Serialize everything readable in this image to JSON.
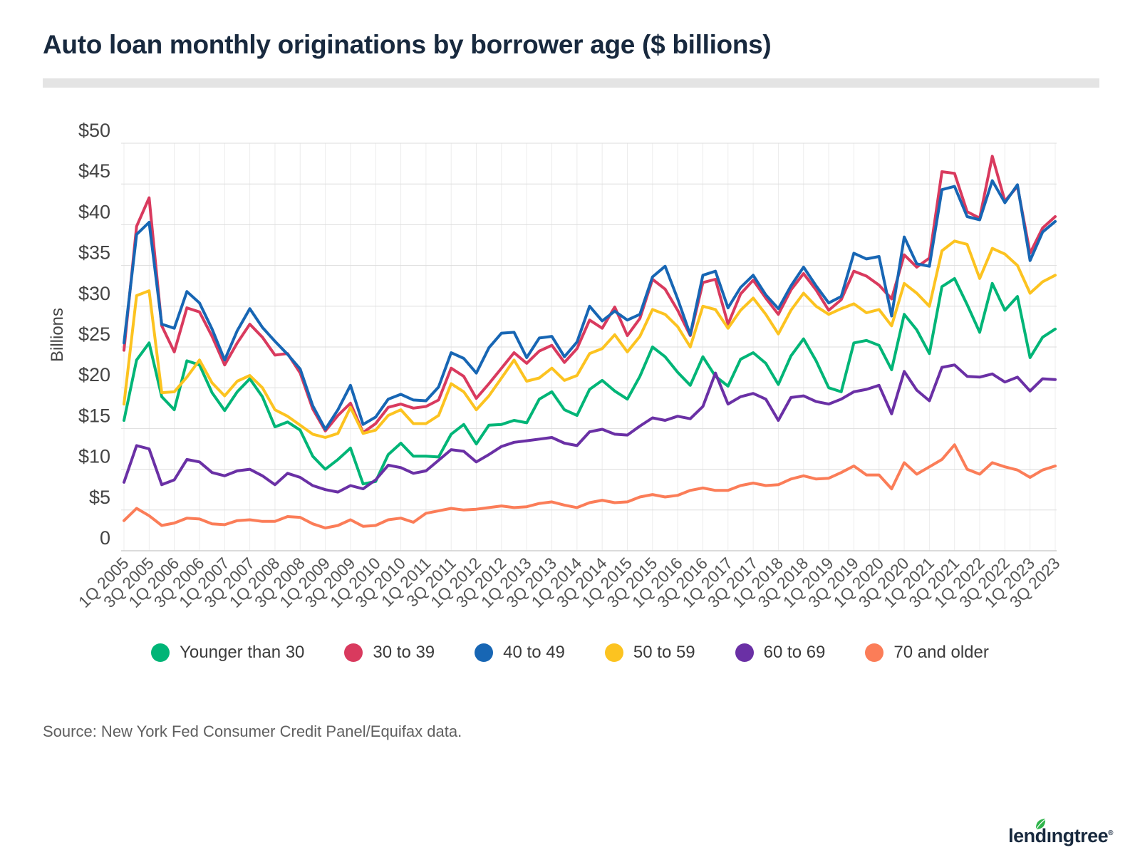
{
  "title": "Auto loan monthly originations by borrower age ($ billions)",
  "source_note": "Source: New York Fed Consumer Credit Panel/Equifax data.",
  "logo": {
    "text_left": "lend",
    "text_right": "ngtree",
    "dotless_i": "ı",
    "registered": "®"
  },
  "colors": {
    "title_navy": "#18293e",
    "grid_line": "#dddddd",
    "grid_line_vertical": "#ececec",
    "axis_text": "#444444",
    "tick_text": "#555555",
    "background": "#ffffff",
    "divider": "#e4e4e4",
    "logo_leaf": "#2fb44b"
  },
  "chart_data": {
    "type": "line",
    "title": "Auto loan monthly originations by borrower age ($ billions)",
    "xlabel": "",
    "ylabel": "Billions",
    "ylim": [
      0,
      50
    ],
    "ytick_step": 5,
    "ytick_labels": [
      "0",
      "$5",
      "$10",
      "$15",
      "$20",
      "$25",
      "$30",
      "$35",
      "$40",
      "$45",
      "$50"
    ],
    "grid": true,
    "legend_position": "bottom",
    "x_tick_labels": [
      "1Q 2005",
      "3Q 2005",
      "1Q 2006",
      "3Q 2006",
      "1Q 2007",
      "3Q 2007",
      "1Q 2008",
      "3Q 2008",
      "1Q 2009",
      "3Q 2009",
      "1Q 2010",
      "3Q 2010",
      "1Q 2011",
      "3Q 2011",
      "1Q 2012",
      "3Q 2012",
      "1Q 2013",
      "3Q 2013",
      "1Q 2014",
      "3Q 2014",
      "1Q 2015",
      "3Q 2015",
      "1Q 2016",
      "3Q 2016",
      "1Q 2017",
      "3Q 2017",
      "1Q 2018",
      "3Q 2018",
      "1Q 2019",
      "3Q 2019",
      "1Q 2020",
      "3Q 2020",
      "1Q 2021",
      "3Q 2021",
      "1Q 2022",
      "3Q 2022",
      "1Q 2023",
      "3Q 2023"
    ],
    "categories": [
      "1Q 2005",
      "2Q 2005",
      "3Q 2005",
      "4Q 2005",
      "1Q 2006",
      "2Q 2006",
      "3Q 2006",
      "4Q 2006",
      "1Q 2007",
      "2Q 2007",
      "3Q 2007",
      "4Q 2007",
      "1Q 2008",
      "2Q 2008",
      "3Q 2008",
      "4Q 2008",
      "1Q 2009",
      "2Q 2009",
      "3Q 2009",
      "4Q 2009",
      "1Q 2010",
      "2Q 2010",
      "3Q 2010",
      "4Q 2010",
      "1Q 2011",
      "2Q 2011",
      "3Q 2011",
      "4Q 2011",
      "1Q 2012",
      "2Q 2012",
      "3Q 2012",
      "4Q 2012",
      "1Q 2013",
      "2Q 2013",
      "3Q 2013",
      "4Q 2013",
      "1Q 2014",
      "2Q 2014",
      "3Q 2014",
      "4Q 2014",
      "1Q 2015",
      "2Q 2015",
      "3Q 2015",
      "4Q 2015",
      "1Q 2016",
      "2Q 2016",
      "3Q 2016",
      "4Q 2016",
      "1Q 2017",
      "2Q 2017",
      "3Q 2017",
      "4Q 2017",
      "1Q 2018",
      "2Q 2018",
      "3Q 2018",
      "4Q 2018",
      "1Q 2019",
      "2Q 2019",
      "3Q 2019",
      "4Q 2019",
      "1Q 2020",
      "2Q 2020",
      "3Q 2020",
      "4Q 2020",
      "1Q 2021",
      "2Q 2021",
      "3Q 2021",
      "4Q 2021",
      "1Q 2022",
      "2Q 2022",
      "3Q 2022",
      "4Q 2022",
      "1Q 2023",
      "2Q 2023",
      "3Q 2023"
    ],
    "series": [
      {
        "name": "Younger than 30",
        "color": "#00b577",
        "values": [
          16.0,
          23.4,
          25.5,
          18.9,
          17.3,
          23.3,
          22.8,
          19.4,
          17.2,
          19.5,
          21.1,
          18.9,
          15.2,
          15.8,
          14.8,
          11.6,
          10.0,
          11.2,
          12.6,
          8.2,
          8.5,
          11.8,
          13.2,
          11.6,
          11.6,
          11.5,
          14.3,
          15.5,
          13.1,
          15.4,
          15.5,
          16.0,
          15.7,
          18.6,
          19.5,
          17.3,
          16.6,
          19.8,
          20.9,
          19.6,
          18.6,
          21.4,
          25.0,
          23.8,
          21.9,
          20.3,
          23.8,
          21.4,
          20.2,
          23.5,
          24.3,
          23.0,
          20.4,
          23.9,
          26.0,
          23.3,
          20.0,
          19.5,
          25.5,
          25.8,
          25.2,
          22.2,
          29.0,
          27.1,
          24.2,
          32.4,
          33.4,
          30.2,
          26.8,
          32.8,
          29.5,
          31.2,
          23.7,
          26.2,
          27.2
        ]
      },
      {
        "name": "30 to 39",
        "color": "#d93a5e",
        "values": [
          24.6,
          39.8,
          43.3,
          27.6,
          24.4,
          29.8,
          29.3,
          26.3,
          22.8,
          25.5,
          27.8,
          26.2,
          24.0,
          24.2,
          21.8,
          17.4,
          14.7,
          16.6,
          18.1,
          14.5,
          15.6,
          17.6,
          18.0,
          17.5,
          17.7,
          18.5,
          22.4,
          21.4,
          18.7,
          20.5,
          22.4,
          24.3,
          23.0,
          24.5,
          25.2,
          23.1,
          24.8,
          28.3,
          27.3,
          29.9,
          26.4,
          28.5,
          33.3,
          32.1,
          29.5,
          26.4,
          32.9,
          33.3,
          27.8,
          31.5,
          33.2,
          31.0,
          29.0,
          32.0,
          34.0,
          32.0,
          29.5,
          30.8,
          34.3,
          33.7,
          32.6,
          30.9,
          36.3,
          34.8,
          35.9,
          46.5,
          46.3,
          41.6,
          40.8,
          48.4,
          42.9,
          44.7,
          36.5,
          39.6,
          41.0
        ]
      },
      {
        "name": "40 to 49",
        "color": "#1766b4",
        "values": [
          25.5,
          38.8,
          40.3,
          27.8,
          27.3,
          31.8,
          30.4,
          27.2,
          23.4,
          27.0,
          29.7,
          27.4,
          25.7,
          24.1,
          22.3,
          17.8,
          14.9,
          17.3,
          20.3,
          15.5,
          16.4,
          18.6,
          19.2,
          18.5,
          18.4,
          20.1,
          24.3,
          23.6,
          21.8,
          24.9,
          26.7,
          26.8,
          23.7,
          26.1,
          26.3,
          23.8,
          25.6,
          30.0,
          28.2,
          29.4,
          28.3,
          29.0,
          33.6,
          34.9,
          30.9,
          26.5,
          33.8,
          34.3,
          29.8,
          32.3,
          33.8,
          31.4,
          29.7,
          32.5,
          34.8,
          32.5,
          30.4,
          31.2,
          36.5,
          35.8,
          36.1,
          28.8,
          38.5,
          35.2,
          34.9,
          44.3,
          44.7,
          41.0,
          40.6,
          45.4,
          42.7,
          44.9,
          35.6,
          39.1,
          40.4
        ]
      },
      {
        "name": "50 to 59",
        "color": "#fcc320",
        "values": [
          18.0,
          31.3,
          31.9,
          19.4,
          19.5,
          21.3,
          23.4,
          20.6,
          19.0,
          20.8,
          21.5,
          20.0,
          17.3,
          16.5,
          15.4,
          14.3,
          13.9,
          14.4,
          17.6,
          14.4,
          14.8,
          16.6,
          17.3,
          15.6,
          15.6,
          16.6,
          20.5,
          19.5,
          17.3,
          19.0,
          21.2,
          23.4,
          20.8,
          21.2,
          22.4,
          20.9,
          21.5,
          24.2,
          24.8,
          26.5,
          24.4,
          26.3,
          29.6,
          29.0,
          27.5,
          25.0,
          30.0,
          29.6,
          27.3,
          29.5,
          31.0,
          29.0,
          26.6,
          29.5,
          31.6,
          30.0,
          29.0,
          29.7,
          30.3,
          29.2,
          29.6,
          27.6,
          32.8,
          31.6,
          30.0,
          36.8,
          38.0,
          37.6,
          33.4,
          37.1,
          36.4,
          35.0,
          31.6,
          33.0,
          33.8
        ]
      },
      {
        "name": "60 to 69",
        "color": "#6a30a5",
        "values": [
          8.4,
          12.9,
          12.5,
          8.1,
          8.7,
          11.2,
          10.9,
          9.6,
          9.2,
          9.8,
          10.0,
          9.2,
          8.1,
          9.5,
          9.0,
          8.0,
          7.5,
          7.2,
          8.0,
          7.6,
          8.7,
          10.5,
          10.2,
          9.5,
          9.8,
          11.1,
          12.4,
          12.2,
          10.9,
          11.8,
          12.8,
          13.3,
          13.5,
          13.7,
          13.9,
          13.2,
          12.9,
          14.6,
          14.9,
          14.3,
          14.2,
          15.3,
          16.3,
          16.0,
          16.5,
          16.2,
          17.7,
          21.8,
          18.0,
          18.9,
          19.3,
          18.6,
          16.0,
          18.8,
          19.0,
          18.3,
          18.0,
          18.6,
          19.5,
          19.8,
          20.3,
          16.8,
          22.0,
          19.7,
          18.4,
          22.5,
          22.8,
          21.4,
          21.3,
          21.7,
          20.7,
          21.3,
          19.6,
          21.1,
          21.0
        ]
      },
      {
        "name": "70 and older",
        "color": "#fb7d58",
        "values": [
          3.7,
          5.2,
          4.3,
          3.1,
          3.4,
          4.0,
          3.9,
          3.3,
          3.2,
          3.7,
          3.8,
          3.6,
          3.6,
          4.2,
          4.1,
          3.3,
          2.8,
          3.1,
          3.8,
          3.0,
          3.1,
          3.8,
          4.0,
          3.5,
          4.6,
          4.9,
          5.2,
          5.0,
          5.1,
          5.3,
          5.5,
          5.3,
          5.4,
          5.8,
          6.0,
          5.6,
          5.3,
          5.9,
          6.2,
          5.9,
          6.0,
          6.6,
          6.9,
          6.6,
          6.8,
          7.4,
          7.7,
          7.4,
          7.4,
          8.0,
          8.3,
          8.0,
          8.1,
          8.8,
          9.2,
          8.8,
          8.9,
          9.6,
          10.4,
          9.3,
          9.3,
          7.6,
          10.8,
          9.4,
          10.3,
          11.2,
          13.0,
          10.0,
          9.4,
          10.8,
          10.3,
          9.9,
          9.0,
          9.9,
          10.4
        ]
      }
    ]
  }
}
